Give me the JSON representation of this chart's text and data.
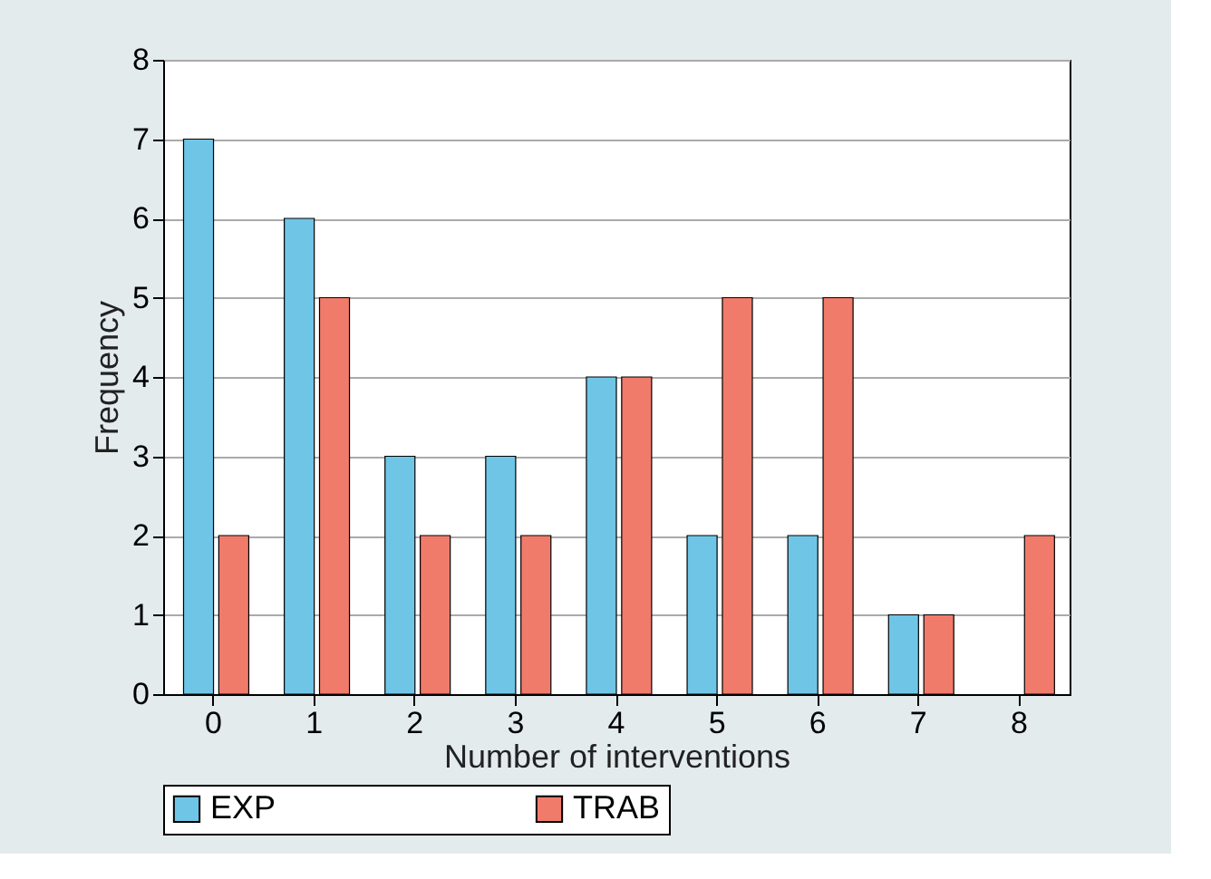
{
  "chart_data": {
    "type": "bar",
    "xlabel": "Number of interventions",
    "ylabel": "Frequency",
    "categories": [
      "0",
      "1",
      "2",
      "3",
      "4",
      "5",
      "6",
      "7",
      "8"
    ],
    "series": [
      {
        "name": "EXP",
        "color": "#6fc5e6",
        "values": [
          7,
          6,
          3,
          3,
          4,
          2,
          2,
          1,
          null
        ]
      },
      {
        "name": "TRAB",
        "color": "#f07b6b",
        "values": [
          2,
          5,
          2,
          2,
          4,
          5,
          5,
          1,
          2
        ]
      }
    ],
    "ylim": [
      0,
      8
    ],
    "yticks": [
      0,
      1,
      2,
      3,
      4,
      5,
      6,
      7,
      8
    ],
    "grid": "y",
    "legend": "bottom"
  }
}
